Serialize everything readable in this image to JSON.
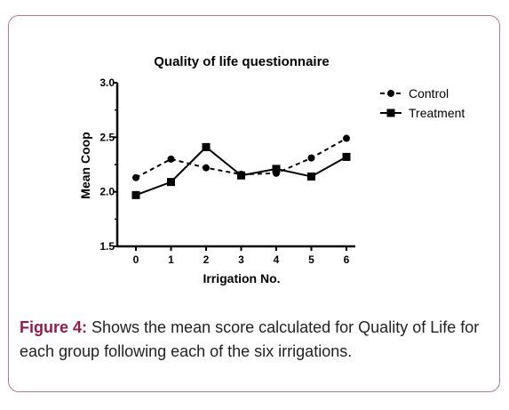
{
  "chart_data": {
    "type": "line",
    "title": "Quality of life questionnaire",
    "xlabel": "Irrigation No.",
    "ylabel": "Mean Coop",
    "x": [
      0,
      1,
      2,
      3,
      4,
      5,
      6
    ],
    "x_tick_labels": [
      "0",
      "1",
      "2",
      "3",
      "4",
      "5",
      "6"
    ],
    "y_tick_labels": [
      "1.5",
      "2.0",
      "2.5",
      "3.0"
    ],
    "ylim": [
      1.5,
      3.0
    ],
    "legend_position": "top-right",
    "grid": false,
    "series": [
      {
        "name": "Control",
        "values": [
          2.13,
          2.3,
          2.22,
          2.16,
          2.17,
          2.31,
          2.49
        ],
        "line_style": "dashed",
        "marker": "circle"
      },
      {
        "name": "Treatment",
        "values": [
          1.97,
          2.09,
          2.41,
          2.15,
          2.21,
          2.14,
          2.32
        ],
        "line_style": "solid",
        "marker": "square"
      }
    ]
  },
  "caption": {
    "lead": "Figure 4:",
    "text": " Shows the mean score calculated for Quality of Life for each group following each of the six irrigations."
  },
  "colors": {
    "frame_border": "#b07a92",
    "caption_lead": "#8f1d4f",
    "series": "#000000"
  }
}
